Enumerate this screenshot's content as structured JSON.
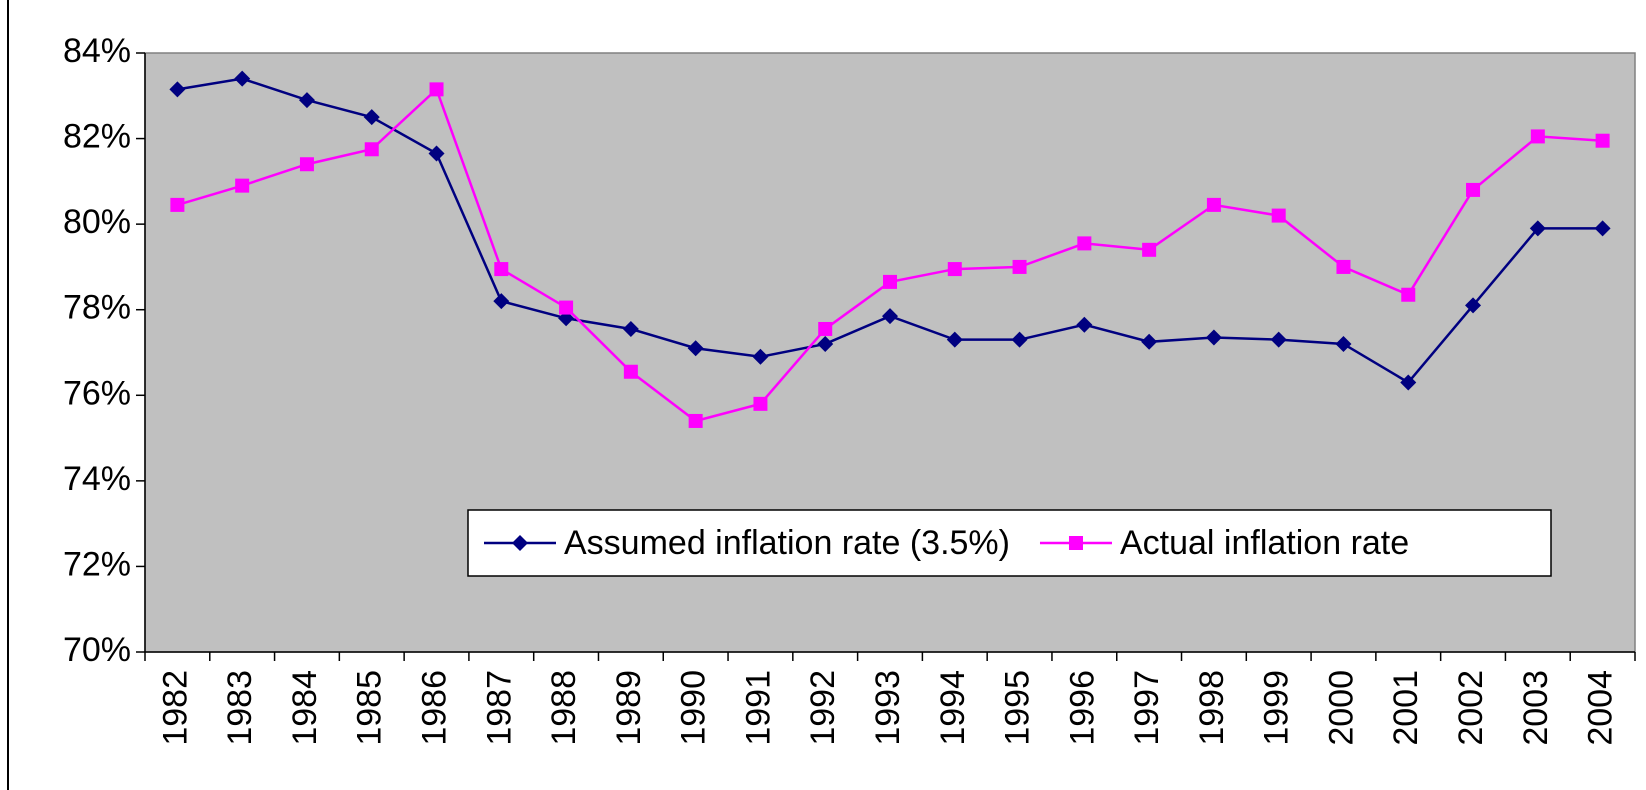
{
  "chart_data": {
    "type": "line",
    "categories": [
      "1982",
      "1983",
      "1984",
      "1985",
      "1986",
      "1987",
      "1988",
      "1989",
      "1990",
      "1991",
      "1992",
      "1993",
      "1994",
      "1995",
      "1996",
      "1997",
      "1998",
      "1999",
      "2000",
      "2001",
      "2002",
      "2003",
      "2004"
    ],
    "series": [
      {
        "name": "Assumed inflation rate (3.5%)",
        "color": "#000080",
        "marker": "diamond",
        "values": [
          83.15,
          83.4,
          82.9,
          82.5,
          81.65,
          78.2,
          77.8,
          77.55,
          77.1,
          76.9,
          77.2,
          77.85,
          77.3,
          77.3,
          77.65,
          77.25,
          77.35,
          77.3,
          77.2,
          76.3,
          78.1,
          79.9,
          79.9
        ]
      },
      {
        "name": "Actual inflation rate",
        "color": "#ff00ff",
        "marker": "square",
        "values": [
          80.45,
          80.9,
          81.4,
          81.75,
          83.15,
          78.95,
          78.05,
          76.55,
          75.4,
          75.8,
          77.55,
          78.65,
          78.95,
          79.0,
          79.55,
          79.4,
          80.45,
          80.2,
          79.0,
          78.35,
          80.8,
          82.05,
          81.95
        ]
      }
    ],
    "ylim": [
      70,
      84
    ],
    "yticks": [
      {
        "value": 70,
        "label": "70%"
      },
      {
        "value": 72,
        "label": "72%"
      },
      {
        "value": 74,
        "label": "74%"
      },
      {
        "value": 76,
        "label": "76%"
      },
      {
        "value": 78,
        "label": "78%"
      },
      {
        "value": 80,
        "label": "80%"
      },
      {
        "value": 82,
        "label": "82%"
      },
      {
        "value": 84,
        "label": "84%"
      }
    ],
    "grid": false,
    "plot_background": "#c0c0c0",
    "legend": "lower right"
  }
}
